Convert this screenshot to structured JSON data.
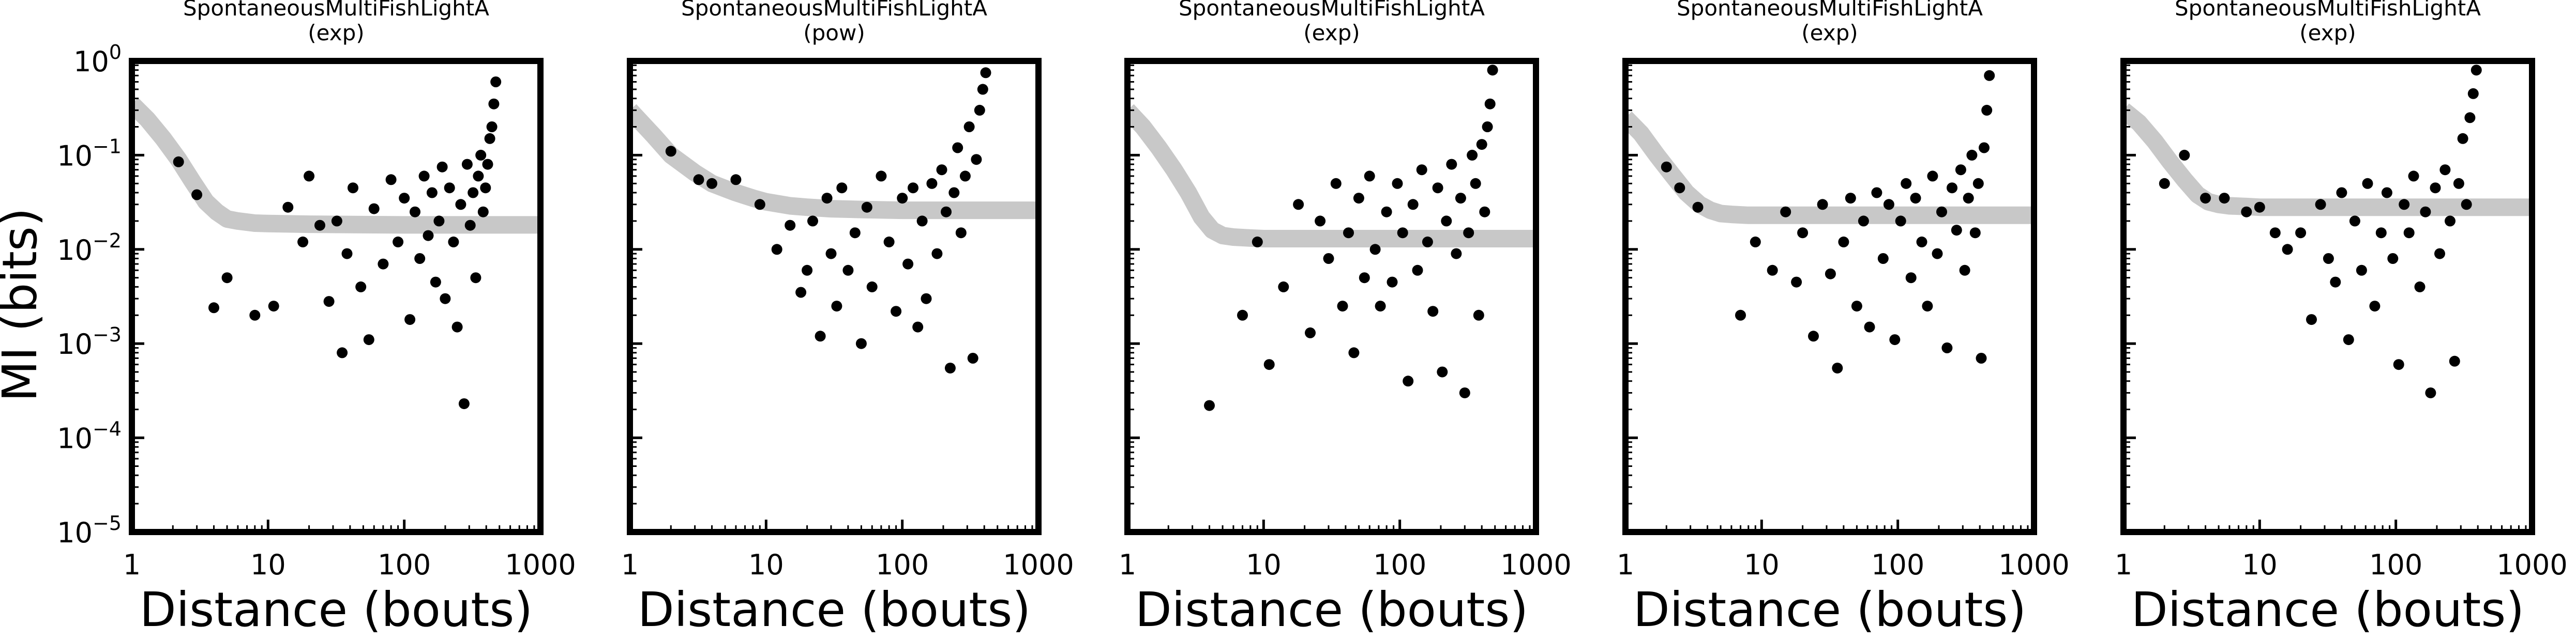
{
  "figure": {
    "ylabel": "MI (bits)"
  },
  "chart_data": [
    {
      "type": "scatter",
      "title": "SpontaneousMultiFishLightA",
      "subtitle": "(exp)",
      "xlabel": "Distance (bouts)",
      "ylabel": "MI (bits)",
      "xscale": "log",
      "yscale": "log",
      "xlim": [
        1,
        1000
      ],
      "ylim": [
        1e-05,
        1
      ],
      "xticks": [
        "1",
        "10",
        "100",
        "1000"
      ],
      "yticks": [
        "10^0",
        "10^-1",
        "10^-2",
        "10^-3",
        "10^-4",
        "10^-5"
      ],
      "grid": false,
      "fit_color": "#c8c8c8",
      "point_color": "#000000",
      "fit": {
        "x": [
          1,
          1.3,
          1.7,
          2.2,
          2.8,
          3.5,
          4.2,
          5,
          6,
          8,
          10,
          20,
          50,
          100,
          200,
          500,
          1000
        ],
        "y": [
          0.35,
          0.24,
          0.15,
          0.09,
          0.052,
          0.032,
          0.025,
          0.021,
          0.02,
          0.019,
          0.0188,
          0.0185,
          0.0183,
          0.0182,
          0.0182,
          0.0182,
          0.0182
        ]
      },
      "x": [
        2.2,
        3.0,
        4.0,
        5.0,
        8.0,
        11,
        14,
        18,
        20,
        24,
        28,
        32,
        35,
        38,
        42,
        48,
        55,
        60,
        70,
        80,
        90,
        100,
        110,
        120,
        130,
        140,
        150,
        160,
        170,
        180,
        190,
        200,
        215,
        230,
        245,
        260,
        275,
        290,
        305,
        320,
        335,
        350,
        365,
        380,
        395,
        410,
        425,
        440,
        455,
        470
      ],
      "y": [
        0.085,
        0.038,
        0.0024,
        0.005,
        0.002,
        0.0025,
        0.028,
        0.012,
        0.06,
        0.018,
        0.0028,
        0.02,
        0.0008,
        0.009,
        0.045,
        0.004,
        0.0011,
        0.027,
        0.007,
        0.055,
        0.012,
        0.035,
        0.0018,
        0.025,
        0.008,
        0.06,
        0.014,
        0.04,
        0.0045,
        0.02,
        0.075,
        0.003,
        0.045,
        0.012,
        0.0015,
        0.03,
        0.00023,
        0.08,
        0.018,
        0.04,
        0.005,
        0.06,
        0.1,
        0.025,
        0.045,
        0.08,
        0.15,
        0.2,
        0.35,
        0.6
      ]
    },
    {
      "type": "scatter",
      "title": "SpontaneousMultiFishLightA",
      "subtitle": "(pow)",
      "xlabel": "Distance (bouts)",
      "xscale": "log",
      "yscale": "log",
      "xlim": [
        1,
        1000
      ],
      "ylim": [
        1e-05,
        1
      ],
      "xticks": [
        "1",
        "10",
        "100",
        "1000"
      ],
      "grid": false,
      "fit_color": "#c8c8c8",
      "point_color": "#000000",
      "fit": {
        "x": [
          1,
          1.5,
          2,
          3,
          4,
          6,
          8,
          10,
          15,
          20,
          30,
          50,
          100,
          200,
          500,
          1000
        ],
        "y": [
          0.3,
          0.16,
          0.1,
          0.065,
          0.05,
          0.04,
          0.035,
          0.032,
          0.029,
          0.028,
          0.027,
          0.0265,
          0.026,
          0.026,
          0.026,
          0.026
        ]
      },
      "x": [
        2.0,
        3.2,
        4.0,
        6.0,
        9.0,
        12,
        15,
        18,
        20,
        22,
        25,
        28,
        30,
        33,
        36,
        40,
        45,
        50,
        55,
        60,
        70,
        80,
        90,
        100,
        110,
        120,
        130,
        140,
        150,
        165,
        180,
        195,
        210,
        225,
        240,
        255,
        270,
        290,
        310,
        330,
        350,
        370,
        390,
        410
      ],
      "y": [
        0.11,
        0.055,
        0.05,
        0.055,
        0.03,
        0.01,
        0.018,
        0.0035,
        0.006,
        0.02,
        0.0012,
        0.035,
        0.009,
        0.0025,
        0.045,
        0.006,
        0.015,
        0.001,
        0.028,
        0.004,
        0.06,
        0.012,
        0.0022,
        0.035,
        0.007,
        0.045,
        0.0015,
        0.02,
        0.003,
        0.05,
        0.009,
        0.07,
        0.025,
        0.00055,
        0.04,
        0.12,
        0.015,
        0.06,
        0.2,
        0.0007,
        0.09,
        0.3,
        0.5,
        0.75
      ]
    },
    {
      "type": "scatter",
      "title": "SpontaneousMultiFishLightA",
      "subtitle": "(exp)",
      "xlabel": "Distance (bouts)",
      "xscale": "log",
      "yscale": "log",
      "xlim": [
        1,
        1000
      ],
      "ylim": [
        1e-05,
        1
      ],
      "xticks": [
        "1",
        "10",
        "100",
        "1000"
      ],
      "grid": false,
      "fit_color": "#c8c8c8",
      "point_color": "#000000",
      "fit": {
        "x": [
          1,
          1.3,
          1.7,
          2.2,
          2.8,
          3.5,
          4.2,
          5,
          6,
          8,
          10,
          20,
          50,
          100,
          200,
          500,
          1000
        ],
        "y": [
          0.3,
          0.2,
          0.12,
          0.07,
          0.04,
          0.022,
          0.016,
          0.014,
          0.0135,
          0.0132,
          0.013,
          0.013,
          0.013,
          0.013,
          0.013,
          0.013,
          0.013
        ]
      },
      "x": [
        4.0,
        7.0,
        9.0,
        11,
        14,
        18,
        22,
        26,
        30,
        34,
        38,
        42,
        46,
        50,
        55,
        60,
        66,
        72,
        80,
        88,
        96,
        105,
        115,
        125,
        135,
        145,
        160,
        175,
        190,
        205,
        220,
        240,
        260,
        280,
        300,
        320,
        340,
        360,
        380,
        400,
        420,
        440,
        460,
        480
      ],
      "y": [
        0.00022,
        0.002,
        0.012,
        0.0006,
        0.004,
        0.03,
        0.0013,
        0.02,
        0.008,
        0.05,
        0.0025,
        0.015,
        0.0008,
        0.035,
        0.005,
        0.06,
        0.01,
        0.0025,
        0.025,
        0.0045,
        0.05,
        0.015,
        0.0004,
        0.03,
        0.006,
        0.07,
        0.012,
        0.0022,
        0.045,
        0.0005,
        0.02,
        0.08,
        0.009,
        0.035,
        0.0003,
        0.015,
        0.1,
        0.05,
        0.002,
        0.13,
        0.025,
        0.2,
        0.35,
        0.8
      ]
    },
    {
      "type": "scatter",
      "title": "SpontaneousMultiFishLightA",
      "subtitle": "(exp)",
      "xlabel": "Distance (bouts)",
      "xscale": "log",
      "yscale": "log",
      "xlim": [
        1,
        1000
      ],
      "ylim": [
        1e-05,
        1
      ],
      "xticks": [
        "1",
        "10",
        "100",
        "1000"
      ],
      "grid": false,
      "fit_color": "#c8c8c8",
      "point_color": "#000000",
      "fit": {
        "x": [
          1,
          1.3,
          1.7,
          2.2,
          2.8,
          3.5,
          4.2,
          5,
          6,
          8,
          10,
          20,
          50,
          100,
          200,
          500,
          1000
        ],
        "y": [
          0.25,
          0.17,
          0.1,
          0.062,
          0.04,
          0.03,
          0.026,
          0.024,
          0.0235,
          0.023,
          0.023,
          0.023,
          0.023,
          0.023,
          0.023,
          0.023,
          0.023
        ]
      },
      "x": [
        2.0,
        2.5,
        3.4,
        7.0,
        9.0,
        12,
        15,
        18,
        20,
        24,
        28,
        32,
        36,
        40,
        45,
        50,
        56,
        62,
        70,
        78,
        86,
        95,
        105,
        115,
        125,
        135,
        150,
        165,
        180,
        195,
        210,
        230,
        250,
        270,
        290,
        310,
        330,
        350,
        370,
        390,
        410,
        430,
        450,
        470
      ],
      "y": [
        0.075,
        0.045,
        0.028,
        0.002,
        0.012,
        0.006,
        0.025,
        0.0045,
        0.015,
        0.0012,
        0.03,
        0.0055,
        0.00055,
        0.012,
        0.035,
        0.0025,
        0.02,
        0.0015,
        0.04,
        0.008,
        0.03,
        0.0011,
        0.02,
        0.05,
        0.005,
        0.035,
        0.012,
        0.0025,
        0.06,
        0.009,
        0.025,
        0.0009,
        0.045,
        0.016,
        0.07,
        0.006,
        0.035,
        0.1,
        0.015,
        0.05,
        0.0007,
        0.12,
        0.3,
        0.7
      ]
    },
    {
      "type": "scatter",
      "title": "SpontaneousMultiFishLightA",
      "subtitle": "(exp)",
      "xlabel": "Distance (bouts)",
      "xscale": "log",
      "yscale": "log",
      "xlim": [
        1,
        1000
      ],
      "ylim": [
        1e-05,
        1
      ],
      "xticks": [
        "1",
        "10",
        "100",
        "1000"
      ],
      "grid": false,
      "fit_color": "#c8c8c8",
      "point_color": "#000000",
      "fit": {
        "x": [
          1,
          1.3,
          1.7,
          2.2,
          2.8,
          3.5,
          4.2,
          5,
          6,
          8,
          10,
          20,
          50,
          100,
          200,
          500,
          1000
        ],
        "y": [
          0.3,
          0.22,
          0.14,
          0.085,
          0.055,
          0.038,
          0.032,
          0.03,
          0.029,
          0.0285,
          0.028,
          0.028,
          0.028,
          0.028,
          0.028,
          0.028,
          0.028
        ]
      },
      "x": [
        2.0,
        2.8,
        4.0,
        5.5,
        8.0,
        10,
        13,
        16,
        20,
        24,
        28,
        32,
        36,
        40,
        45,
        50,
        56,
        62,
        70,
        78,
        86,
        95,
        105,
        115,
        125,
        135,
        150,
        165,
        180,
        195,
        210,
        230,
        250,
        270,
        290,
        310,
        330,
        350,
        370,
        390
      ],
      "y": [
        0.05,
        0.1,
        0.035,
        0.035,
        0.025,
        0.028,
        0.015,
        0.01,
        0.015,
        0.0018,
        0.03,
        0.008,
        0.0045,
        0.04,
        0.0011,
        0.02,
        0.006,
        0.05,
        0.0025,
        0.015,
        0.04,
        0.008,
        0.0006,
        0.03,
        0.015,
        0.06,
        0.004,
        0.025,
        0.0003,
        0.045,
        0.009,
        0.07,
        0.02,
        0.00065,
        0.05,
        0.15,
        0.03,
        0.25,
        0.45,
        0.8
      ]
    }
  ]
}
